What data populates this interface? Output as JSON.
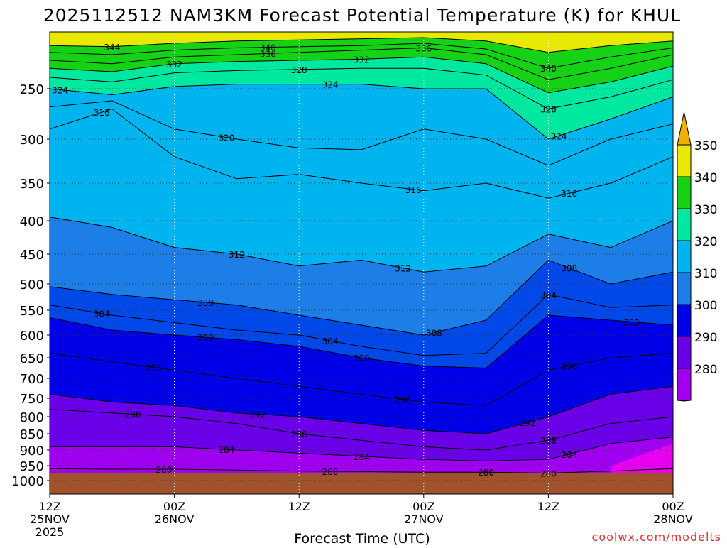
{
  "chart_data": {
    "type": "contour",
    "title": "2025112512 NAM3KM Forecast Potential Temperature (K) for KHUL",
    "xlabel": "Forecast Time (UTC)",
    "ylabel": "",
    "credit": "coolwx.com/modelts",
    "ylim": [
      1000,
      200
    ],
    "xlim_hours": [
      0,
      60
    ],
    "x_ticks": [
      {
        "hour": 0,
        "label": "12Z",
        "day": "25NOV",
        "year": "2025"
      },
      {
        "hour": 12,
        "label": "00Z",
        "day": "26NOV",
        "year": ""
      },
      {
        "hour": 24,
        "label": "12Z",
        "day": "",
        "year": ""
      },
      {
        "hour": 36,
        "label": "00Z",
        "day": "27NOV",
        "year": ""
      },
      {
        "hour": 48,
        "label": "12Z",
        "day": "",
        "year": ""
      },
      {
        "hour": 60,
        "label": "00Z",
        "day": "28NOV",
        "year": ""
      }
    ],
    "y_ticks": [
      250,
      300,
      350,
      400,
      450,
      500,
      550,
      600,
      650,
      700,
      750,
      800,
      850,
      900,
      950,
      1000
    ],
    "color_scale": {
      "boundaries": [
        270,
        280,
        290,
        300,
        310,
        320,
        330,
        340,
        350,
        360
      ],
      "labels": [
        "280",
        "290",
        "300",
        "310",
        "320",
        "330",
        "340",
        "350"
      ],
      "colors": [
        "#ee00ee",
        "#a000f0",
        "#6a00e8",
        "#0000e6",
        "#0048e8",
        "#1e7ee8",
        "#00b4f0",
        "#00e8a0",
        "#16d216",
        "#e8e800",
        "#f0b000"
      ]
    },
    "contour_interval": 4,
    "contour_labels": [
      "340",
      "344",
      "336",
      "336",
      "332",
      "332",
      "328",
      "340",
      "324",
      "324",
      "328",
      "316",
      "324",
      "320",
      "316",
      "316",
      "308",
      "312",
      "312",
      "304",
      "304",
      "308",
      "308",
      "300",
      "300",
      "304",
      "296",
      "296",
      "300",
      "288",
      "292",
      "296",
      "292",
      "284",
      "288",
      "284",
      "288",
      "284",
      "280",
      "280",
      "280",
      "280"
    ],
    "series": [
      {
        "name": "344 K",
        "hours": [
          0,
          6,
          12,
          18,
          24,
          30,
          36,
          42,
          48,
          54,
          60
        ],
        "values": [
          212,
          213,
          210,
          208,
          207,
          206,
          205,
          208,
          218,
          212,
          208
        ]
      },
      {
        "name": "340 K",
        "hours": [
          0,
          6,
          12,
          18,
          24,
          30,
          36,
          42,
          48,
          54,
          60
        ],
        "values": [
          218,
          220,
          216,
          214,
          213,
          212,
          210,
          215,
          232,
          222,
          214
        ]
      },
      {
        "name": "336 K",
        "hours": [
          0,
          6,
          12,
          18,
          24,
          30,
          36,
          42,
          48,
          54,
          60
        ],
        "values": [
          225,
          228,
          222,
          220,
          218,
          216,
          214,
          220,
          242,
          232,
          220
        ]
      },
      {
        "name": "332 K",
        "hours": [
          0,
          6,
          12,
          18,
          24,
          30,
          36,
          42,
          48,
          54,
          60
        ],
        "values": [
          232,
          235,
          228,
          226,
          225,
          224,
          222,
          228,
          254,
          244,
          230
        ]
      },
      {
        "name": "328 K",
        "hours": [
          0,
          6,
          12,
          18,
          24,
          30,
          36,
          42,
          48,
          54,
          60
        ],
        "values": [
          240,
          244,
          236,
          234,
          233,
          232,
          232,
          238,
          270,
          258,
          242
        ]
      },
      {
        "name": "324 K",
        "hours": [
          0,
          6,
          12,
          18,
          24,
          30,
          36,
          42,
          48,
          54,
          60
        ],
        "values": [
          250,
          256,
          248,
          246,
          246,
          246,
          250,
          250,
          300,
          280,
          258
        ]
      },
      {
        "name": "320 K",
        "hours": [
          0,
          6,
          12,
          18,
          24,
          30,
          36,
          42,
          48,
          54,
          60
        ],
        "values": [
          268,
          262,
          290,
          300,
          310,
          312,
          290,
          300,
          330,
          300,
          285
        ]
      },
      {
        "name": "316 K",
        "hours": [
          0,
          6,
          12,
          18,
          24,
          30,
          36,
          42,
          48,
          54,
          60
        ],
        "values": [
          290,
          270,
          320,
          345,
          340,
          350,
          360,
          350,
          370,
          350,
          320
        ]
      },
      {
        "name": "312 K",
        "hours": [
          0,
          6,
          12,
          18,
          24,
          30,
          36,
          42,
          48,
          54,
          60
        ],
        "values": [
          395,
          410,
          440,
          450,
          470,
          460,
          480,
          470,
          420,
          440,
          400
        ]
      },
      {
        "name": "308 K",
        "hours": [
          0,
          6,
          12,
          18,
          24,
          30,
          36,
          42,
          48,
          54,
          60
        ],
        "values": [
          505,
          520,
          530,
          540,
          560,
          580,
          600,
          570,
          460,
          500,
          480
        ]
      },
      {
        "name": "304 K",
        "hours": [
          0,
          6,
          12,
          18,
          24,
          30,
          36,
          42,
          48,
          54,
          60
        ],
        "values": [
          540,
          560,
          575,
          590,
          600,
          625,
          645,
          640,
          520,
          545,
          540
        ]
      },
      {
        "name": "300 K",
        "hours": [
          0,
          6,
          12,
          18,
          24,
          30,
          36,
          42,
          48,
          54,
          60
        ],
        "values": [
          565,
          590,
          600,
          610,
          625,
          650,
          670,
          675,
          560,
          570,
          580
        ]
      },
      {
        "name": "296 K",
        "hours": [
          0,
          6,
          12,
          18,
          24,
          30,
          36,
          42,
          48,
          54,
          60
        ],
        "values": [
          640,
          660,
          680,
          700,
          720,
          740,
          760,
          770,
          680,
          650,
          640
        ]
      },
      {
        "name": "292 K",
        "hours": [
          0,
          6,
          12,
          18,
          24,
          30,
          36,
          42,
          48,
          54,
          60
        ],
        "values": [
          740,
          760,
          770,
          790,
          800,
          820,
          840,
          850,
          800,
          740,
          720
        ]
      },
      {
        "name": "288 K",
        "hours": [
          0,
          6,
          12,
          18,
          24,
          30,
          36,
          42,
          48,
          54,
          60
        ],
        "values": [
          780,
          790,
          800,
          820,
          850,
          870,
          890,
          900,
          870,
          820,
          800
        ]
      },
      {
        "name": "284 K",
        "hours": [
          0,
          6,
          12,
          18,
          24,
          30,
          36,
          42,
          48,
          54,
          60
        ],
        "values": [
          890,
          890,
          890,
          900,
          910,
          920,
          930,
          935,
          930,
          880,
          860
        ]
      },
      {
        "name": "280 K",
        "hours": [
          0,
          6,
          12,
          18,
          24,
          30,
          36,
          42,
          48,
          54,
          60
        ],
        "values": [
          960,
          962,
          962,
          965,
          968,
          970,
          972,
          972,
          975,
          968,
          960
        ]
      }
    ]
  }
}
